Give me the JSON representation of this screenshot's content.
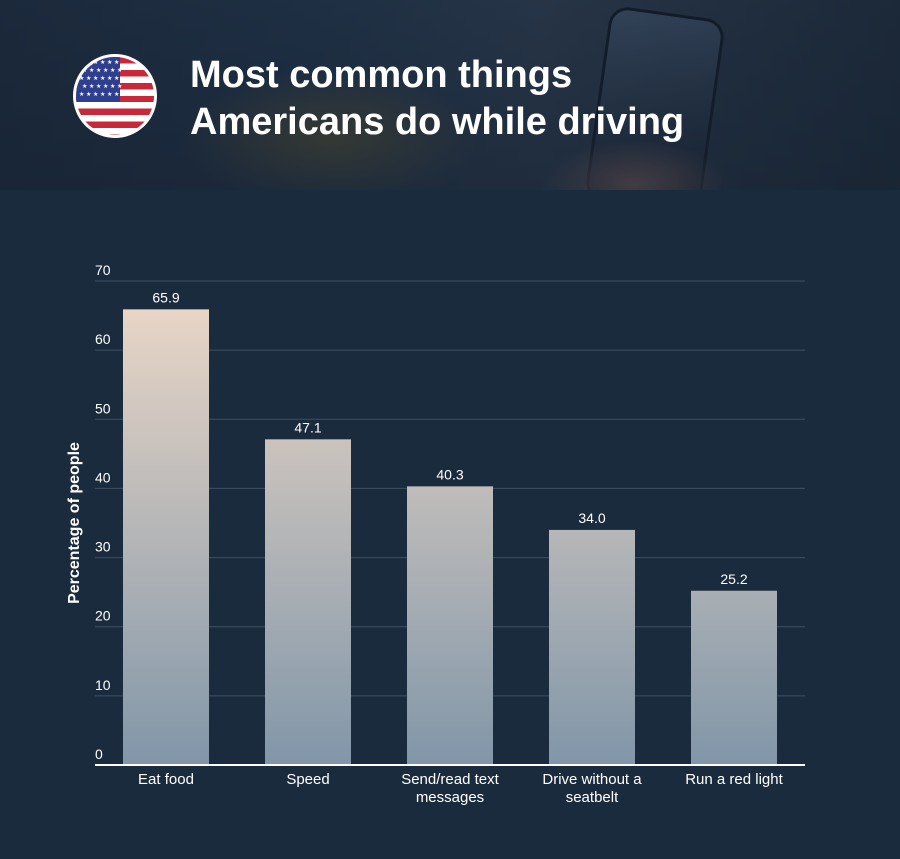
{
  "header": {
    "title_line1": "Most common things",
    "title_line2": "Americans do while driving",
    "flag_icon": "us-flag-icon"
  },
  "chart_data": {
    "type": "bar",
    "title": "Most common things Americans do while driving",
    "categories": [
      "Eat food",
      "Speed",
      "Send/read text messages",
      "Drive without a seatbelt",
      "Run a red light"
    ],
    "category_lines": [
      [
        "Eat food"
      ],
      [
        "Speed"
      ],
      [
        "Send/read text",
        "messages"
      ],
      [
        "Drive without a",
        "seatbelt"
      ],
      [
        "Run a red light"
      ]
    ],
    "values": [
      65.9,
      47.1,
      40.3,
      34.0,
      25.2
    ],
    "value_labels": [
      "65.9",
      "47.1",
      "40.3",
      "34.0",
      "25.2"
    ],
    "ylabel": "Percentage of people",
    "xlabel": "",
    "ylim": [
      0,
      70
    ],
    "yticks": [
      0,
      10,
      20,
      30,
      40,
      50,
      60,
      70
    ],
    "grid": true,
    "legend": "none",
    "colors": {
      "bar_top": "#eed9c8",
      "bar_bottom": "#8196a8",
      "grid": "#3c4f63",
      "axis": "#ffffff",
      "text": "#ffffff",
      "background": "#1b2b3e"
    }
  }
}
